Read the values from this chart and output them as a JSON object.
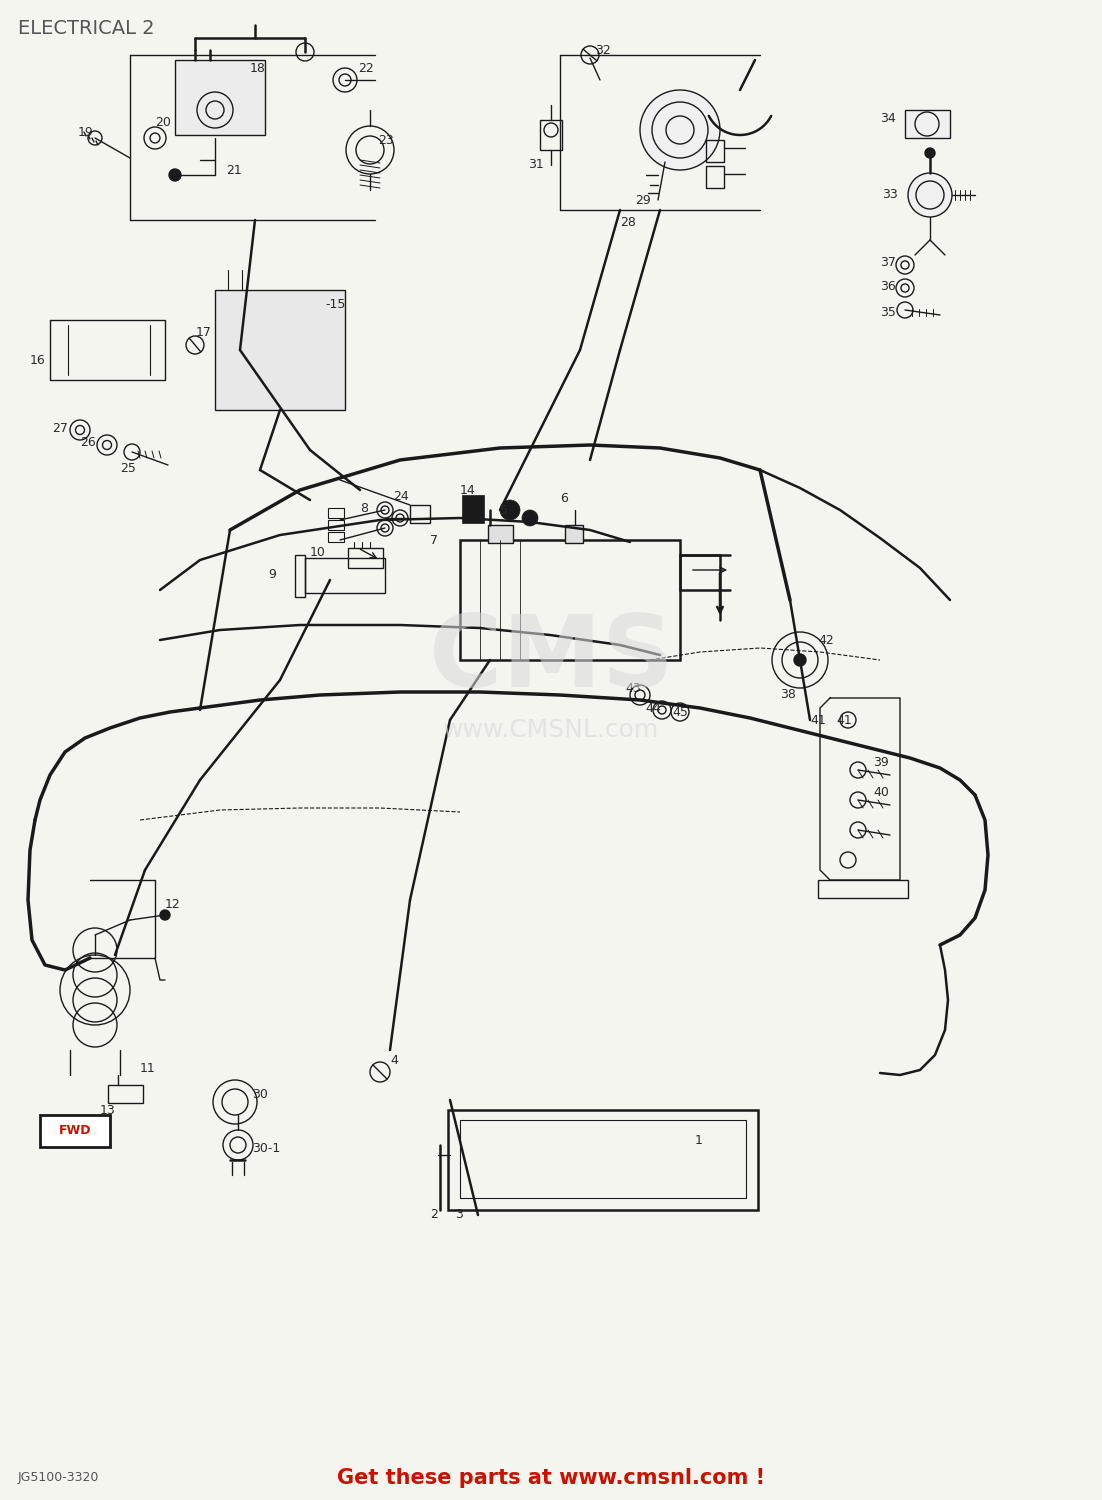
{
  "title": "ELECTRICAL 2",
  "bg_color": "#f5f5f0",
  "lc": "#1a1a1a",
  "tc": "#2a2a2a",
  "wm_color": "#d8d8d8",
  "bottom_text": "Get these parts at www.cmsnl.com !",
  "bottom_text_color": "#cc1100",
  "bottom_label": "JG5100-3320",
  "figw": 11.02,
  "figh": 15.0
}
